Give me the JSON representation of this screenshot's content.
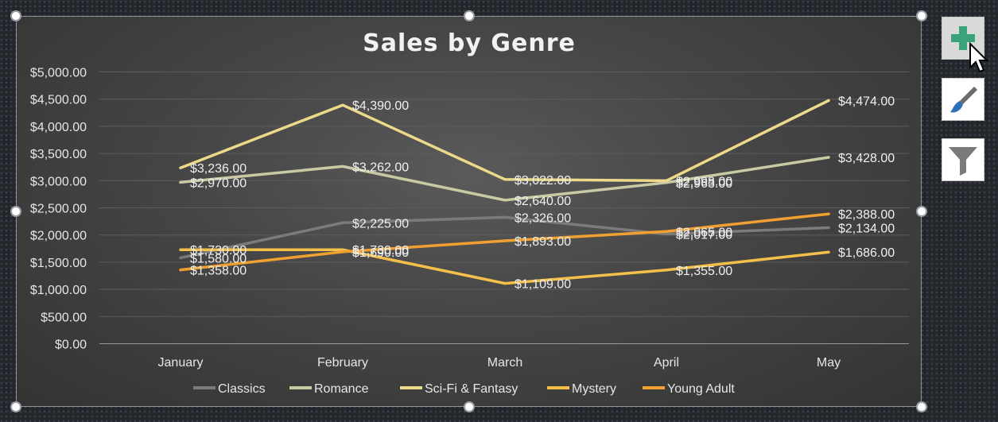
{
  "chart_data": {
    "type": "line",
    "title": "Sales by Genre",
    "categories": [
      "January",
      "February",
      "March",
      "April",
      "May"
    ],
    "ylim": [
      0,
      5000
    ],
    "yticks": [
      "$0.00",
      "$500.00",
      "$1,000.00",
      "$1,500.00",
      "$2,000.00",
      "$2,500.00",
      "$3,000.00",
      "$3,500.00",
      "$4,000.00",
      "$4,500.00",
      "$5,000.00"
    ],
    "ytick_values": [
      0,
      500,
      1000,
      1500,
      2000,
      2500,
      3000,
      3500,
      4000,
      4500,
      5000
    ],
    "grid": true,
    "legend": "bottom",
    "series": [
      {
        "name": "Classics",
        "color": "#7b7b7b",
        "values": [
          1580,
          2225,
          2326,
          2017,
          2134
        ],
        "labels": [
          "$1,580.00",
          "$2,225.00",
          "$2,326.00",
          "$2,017.00",
          "$2,134.00"
        ]
      },
      {
        "name": "Romance",
        "color": "#c9c9a3",
        "values": [
          2970,
          3262,
          2640,
          2963,
          3428
        ],
        "labels": [
          "$2,970.00",
          "$3,262.00",
          "$2,640.00",
          "$2,963.00",
          "$3,428.00"
        ]
      },
      {
        "name": "Sci-Fi & Fantasy",
        "color": "#ecd98a",
        "values": [
          3236,
          4390,
          3022,
          2998,
          4474
        ],
        "labels": [
          "$3,236.00",
          "$4,390.00",
          "$3,022.00",
          "$2,998.00",
          "$4,474.00"
        ]
      },
      {
        "name": "Mystery",
        "color": "#f5c04a",
        "values": [
          1730,
          1730,
          1109,
          1355,
          1686
        ],
        "labels": [
          "$1,730.00",
          "$1,730.00",
          "$1,109.00",
          "$1,355.00",
          "$1,686.00"
        ]
      },
      {
        "name": "Young Adult",
        "color": "#f0a030",
        "values": [
          1358,
          1690,
          1893,
          2065,
          2388
        ],
        "labels": [
          "$1,358.00",
          "$1,690.00",
          "$1,893.00",
          "$2,065.00",
          "$2,388.00"
        ]
      }
    ]
  },
  "side_buttons": [
    {
      "name": "chart-elements-button",
      "icon": "plus-icon",
      "color": "#3aa37a"
    },
    {
      "name": "chart-styles-button",
      "icon": "paintbrush-icon",
      "color": "#2f6fb5"
    },
    {
      "name": "chart-filters-button",
      "icon": "funnel-icon",
      "color": "#7a7a7a"
    }
  ]
}
